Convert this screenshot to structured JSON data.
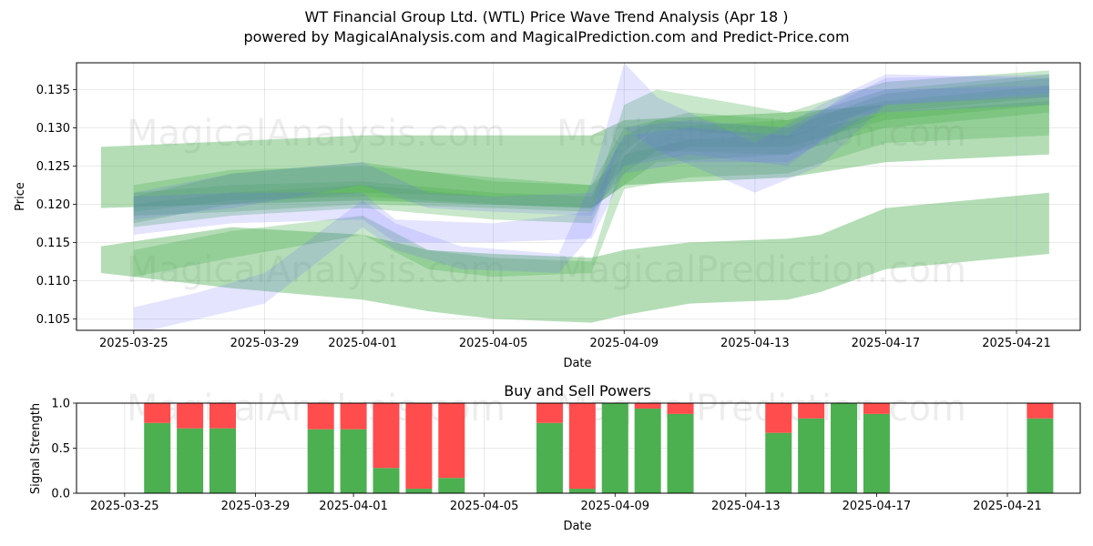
{
  "title_line1": "WT Financial Group Ltd. (WTL) Price Wave Trend Analysis (Apr 18 )",
  "title_line2": "powered by MagicalAnalysis.com and MagicalPrediction.com and Predict-Price.com",
  "watermarks": [
    "MagicalAnalysis.com",
    "MagicalPrediction.com"
  ],
  "colors": {
    "green_band": "#4caf50",
    "blue_band": "#6a6aff",
    "buy": "#4caf50",
    "sell": "#ff4c4c"
  },
  "chart_data": [
    {
      "type": "area",
      "title": "",
      "xlabel": "Date",
      "ylabel": "Price",
      "x_ticks": [
        "2025-03-25",
        "2025-03-29",
        "2025-04-01",
        "2025-04-05",
        "2025-04-09",
        "2025-04-13",
        "2025-04-17",
        "2025-04-21"
      ],
      "y_ticks": [
        "0.105",
        "0.110",
        "0.115",
        "0.120",
        "0.125",
        "0.130",
        "0.135"
      ],
      "xlim": [
        "2025-03-23",
        "2025-04-23"
      ],
      "ylim": [
        0.1035,
        0.1385
      ],
      "grid": true,
      "series": [
        {
          "group": "green",
          "x": [
            "2025-03-24",
            "2025-04-01",
            "2025-04-08",
            "2025-04-09",
            "2025-04-14",
            "2025-04-17",
            "2025-04-22"
          ],
          "lower": [
            0.1195,
            0.1205,
            0.1195,
            0.1225,
            0.1235,
            0.1255,
            0.1265
          ],
          "upper": [
            0.1275,
            0.129,
            0.129,
            0.131,
            0.132,
            0.133,
            0.1345
          ]
        },
        {
          "group": "green",
          "x": [
            "2025-03-24",
            "2025-03-28",
            "2025-04-01",
            "2025-04-03",
            "2025-04-05",
            "2025-04-08",
            "2025-04-09",
            "2025-04-11",
            "2025-04-14",
            "2025-04-15",
            "2025-04-17",
            "2025-04-22"
          ],
          "lower": [
            0.111,
            0.109,
            0.1075,
            0.106,
            0.105,
            0.1045,
            0.1055,
            0.107,
            0.1075,
            0.1085,
            0.1115,
            0.1135
          ],
          "upper": [
            0.1145,
            0.117,
            0.116,
            0.114,
            0.1135,
            0.113,
            0.114,
            0.115,
            0.1155,
            0.116,
            0.1195,
            0.1215
          ]
        },
        {
          "group": "green",
          "x": [
            "2025-03-25",
            "2025-03-28",
            "2025-04-01",
            "2025-04-03",
            "2025-04-05",
            "2025-04-08",
            "2025-04-09",
            "2025-04-11",
            "2025-04-14",
            "2025-04-17",
            "2025-04-22"
          ],
          "lower": [
            0.1105,
            0.113,
            0.116,
            0.1115,
            0.1105,
            0.111,
            0.122,
            0.1235,
            0.124,
            0.128,
            0.129
          ],
          "upper": [
            0.114,
            0.1165,
            0.1185,
            0.114,
            0.113,
            0.1125,
            0.1265,
            0.1285,
            0.129,
            0.132,
            0.1335
          ]
        },
        {
          "group": "green",
          "x": [
            "2025-03-25",
            "2025-03-28",
            "2025-04-01",
            "2025-04-05",
            "2025-04-08",
            "2025-04-09",
            "2025-04-11",
            "2025-04-14",
            "2025-04-17",
            "2025-04-22"
          ],
          "lower": [
            0.1175,
            0.12,
            0.1215,
            0.121,
            0.12,
            0.125,
            0.1275,
            0.1275,
            0.131,
            0.133
          ],
          "upper": [
            0.121,
            0.124,
            0.1255,
            0.123,
            0.1225,
            0.13,
            0.132,
            0.131,
            0.135,
            0.137
          ]
        },
        {
          "group": "green",
          "x": [
            "2025-03-25",
            "2025-03-28",
            "2025-04-01",
            "2025-04-05",
            "2025-04-08",
            "2025-04-09",
            "2025-04-10",
            "2025-04-14",
            "2025-04-17",
            "2025-04-22"
          ],
          "lower": [
            0.1185,
            0.119,
            0.12,
            0.1195,
            0.119,
            0.124,
            0.127,
            0.1265,
            0.132,
            0.134
          ],
          "upper": [
            0.1215,
            0.1225,
            0.123,
            0.1215,
            0.121,
            0.129,
            0.131,
            0.13,
            0.1345,
            0.1365
          ]
        },
        {
          "group": "green",
          "x": [
            "2025-03-25",
            "2025-03-28",
            "2025-04-01",
            "2025-04-05",
            "2025-04-08",
            "2025-04-09",
            "2025-04-10",
            "2025-04-14",
            "2025-04-17",
            "2025-04-22"
          ],
          "lower": [
            0.117,
            0.1185,
            0.1195,
            0.118,
            0.1175,
            0.127,
            0.13,
            0.1285,
            0.133,
            0.1345
          ],
          "upper": [
            0.12,
            0.1215,
            0.1225,
            0.121,
            0.12,
            0.133,
            0.135,
            0.132,
            0.136,
            0.1375
          ]
        },
        {
          "group": "green",
          "x": [
            "2025-03-25",
            "2025-03-28",
            "2025-04-01",
            "2025-04-05",
            "2025-04-08",
            "2025-04-10",
            "2025-04-14",
            "2025-04-17",
            "2025-04-22"
          ],
          "lower": [
            0.119,
            0.1205,
            0.121,
            0.12,
            0.1195,
            0.1255,
            0.1265,
            0.13,
            0.132
          ],
          "upper": [
            0.1225,
            0.1245,
            0.125,
            0.1235,
            0.1225,
            0.13,
            0.131,
            0.1335,
            0.1355
          ]
        },
        {
          "group": "blue",
          "x": [
            "2025-03-25",
            "2025-03-27",
            "2025-03-29",
            "2025-04-01",
            "2025-04-02",
            "2025-04-04",
            "2025-04-07",
            "2025-04-08",
            "2025-04-09",
            "2025-04-10",
            "2025-04-13",
            "2025-04-15",
            "2025-04-17",
            "2025-04-22"
          ],
          "lower": [
            0.103,
            0.105,
            0.107,
            0.117,
            0.114,
            0.1115,
            0.111,
            0.116,
            0.13,
            0.127,
            0.1215,
            0.125,
            0.133,
            0.134
          ],
          "upper": [
            0.1065,
            0.1085,
            0.111,
            0.1205,
            0.1175,
            0.1145,
            0.1135,
            0.123,
            0.1385,
            0.134,
            0.128,
            0.133,
            0.137,
            0.1365
          ]
        },
        {
          "group": "blue",
          "x": [
            "2025-03-25",
            "2025-03-28",
            "2025-04-01",
            "2025-04-02",
            "2025-04-05",
            "2025-04-08",
            "2025-04-09",
            "2025-04-11",
            "2025-04-14",
            "2025-04-17",
            "2025-04-22"
          ],
          "lower": [
            0.116,
            0.1175,
            0.118,
            0.115,
            0.115,
            0.1155,
            0.124,
            0.1255,
            0.1255,
            0.133,
            0.1345
          ],
          "upper": [
            0.121,
            0.1215,
            0.1215,
            0.118,
            0.1175,
            0.119,
            0.13,
            0.131,
            0.13,
            0.1365,
            0.137
          ]
        },
        {
          "group": "blue",
          "x": [
            "2025-03-25",
            "2025-03-28",
            "2025-04-01",
            "2025-04-03",
            "2025-04-05",
            "2025-04-08",
            "2025-04-09",
            "2025-04-11",
            "2025-04-14",
            "2025-04-16",
            "2025-04-17",
            "2025-04-22"
          ],
          "lower": [
            0.118,
            0.1195,
            0.1225,
            0.1195,
            0.119,
            0.1185,
            0.125,
            0.1265,
            0.125,
            0.1315,
            0.132,
            0.133
          ],
          "upper": [
            0.1215,
            0.124,
            0.1255,
            0.1215,
            0.121,
            0.1215,
            0.129,
            0.13,
            0.129,
            0.135,
            0.135,
            0.1355
          ]
        }
      ]
    },
    {
      "type": "bar",
      "title": "Buy and Sell Powers",
      "xlabel": "Date",
      "ylabel": "Signal Strength",
      "x_ticks": [
        "2025-03-25",
        "2025-03-29",
        "2025-04-01",
        "2025-04-05",
        "2025-04-09",
        "2025-04-13",
        "2025-04-17",
        "2025-04-21"
      ],
      "y_ticks": [
        "0.0",
        "0.5",
        "1.0"
      ],
      "xlim": [
        "2025-03-23",
        "2025-04-23"
      ],
      "ylim": [
        0,
        1
      ],
      "categories": [
        "2025-03-26",
        "2025-03-27",
        "2025-03-28",
        "2025-03-31",
        "2025-04-01",
        "2025-04-02",
        "2025-04-03",
        "2025-04-04",
        "2025-04-07",
        "2025-04-08",
        "2025-04-09",
        "2025-04-10",
        "2025-04-11",
        "2025-04-14",
        "2025-04-15",
        "2025-04-16",
        "2025-04-17",
        "2025-04-22"
      ],
      "series": [
        {
          "name": "Buy",
          "values": [
            0.78,
            0.72,
            0.72,
            0.71,
            0.71,
            0.28,
            0.05,
            0.17,
            0.78,
            0.05,
            1.0,
            0.94,
            0.88,
            0.67,
            0.83,
            1.0,
            0.88,
            0.83
          ]
        },
        {
          "name": "Sell",
          "values": [
            0.22,
            0.28,
            0.28,
            0.29,
            0.29,
            0.72,
            0.95,
            0.83,
            0.22,
            0.95,
            0.0,
            0.06,
            0.12,
            0.33,
            0.17,
            0.0,
            0.12,
            0.17
          ]
        }
      ]
    }
  ]
}
